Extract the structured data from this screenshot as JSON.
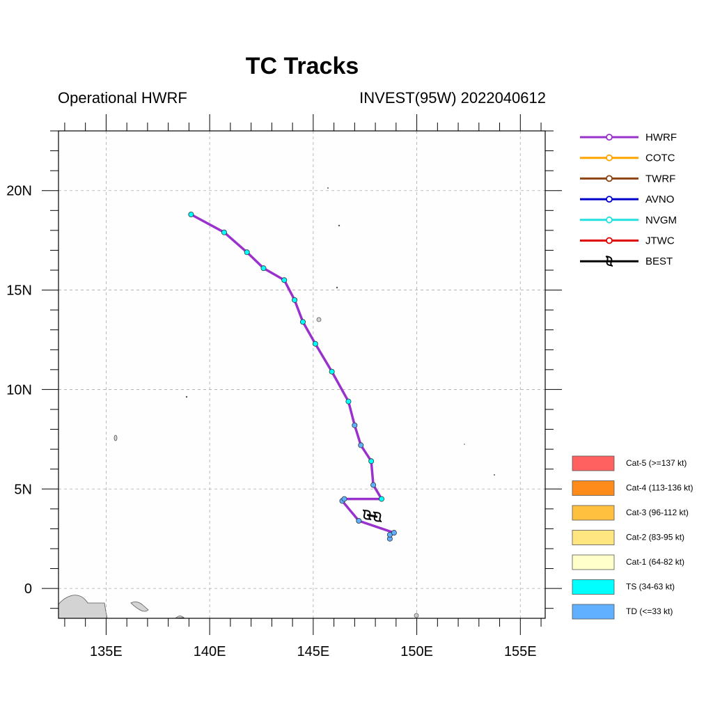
{
  "chart_data": {
    "type": "map-track",
    "title": "TC Tracks",
    "subtitle_left": "Operational HWRF",
    "subtitle_right": "INVEST(95W) 2022040612",
    "xlim": [
      132.7,
      156.2
    ],
    "ylim": [
      -1.5,
      23.0
    ],
    "x_ticks": [
      {
        "value": 135,
        "label": "135E"
      },
      {
        "value": 140,
        "label": "140E"
      },
      {
        "value": 145,
        "label": "145E"
      },
      {
        "value": 150,
        "label": "150E"
      },
      {
        "value": 155,
        "label": "155E"
      }
    ],
    "y_ticks": [
      {
        "value": 0,
        "label": "0"
      },
      {
        "value": 5,
        "label": "5N"
      },
      {
        "value": 10,
        "label": "10N"
      },
      {
        "value": 15,
        "label": "15N"
      },
      {
        "value": 20,
        "label": "20N"
      }
    ],
    "grid": true,
    "legend_position": "right",
    "series": [
      {
        "name": "HWRF",
        "color": "#9932CC",
        "points": [
          {
            "lon": 148.7,
            "lat": 2.5,
            "cat": "TD"
          },
          {
            "lon": 148.7,
            "lat": 2.7,
            "cat": "TD"
          },
          {
            "lon": 148.9,
            "lat": 2.8,
            "cat": "TD"
          },
          {
            "lon": 147.2,
            "lat": 3.4,
            "cat": "TD"
          },
          {
            "lon": 146.4,
            "lat": 4.4,
            "cat": "TD"
          },
          {
            "lon": 146.5,
            "lat": 4.5,
            "cat": "TD"
          },
          {
            "lon": 148.3,
            "lat": 4.5,
            "cat": "TS"
          },
          {
            "lon": 147.9,
            "lat": 5.2,
            "cat": "TD"
          },
          {
            "lon": 147.8,
            "lat": 6.4,
            "cat": "TS"
          },
          {
            "lon": 147.3,
            "lat": 7.2,
            "cat": "TD"
          },
          {
            "lon": 147.0,
            "lat": 8.2,
            "cat": "TD"
          },
          {
            "lon": 146.7,
            "lat": 9.4,
            "cat": "TS"
          },
          {
            "lon": 145.9,
            "lat": 10.9,
            "cat": "TS"
          },
          {
            "lon": 145.1,
            "lat": 12.3,
            "cat": "TS"
          },
          {
            "lon": 144.5,
            "lat": 13.4,
            "cat": "TS"
          },
          {
            "lon": 144.1,
            "lat": 14.5,
            "cat": "TS"
          },
          {
            "lon": 143.6,
            "lat": 15.5,
            "cat": "TS"
          },
          {
            "lon": 142.6,
            "lat": 16.1,
            "cat": "TS"
          },
          {
            "lon": 141.8,
            "lat": 16.9,
            "cat": "TS"
          },
          {
            "lon": 140.7,
            "lat": 17.9,
            "cat": "TS"
          },
          {
            "lon": 139.1,
            "lat": 18.8,
            "cat": "TS"
          }
        ]
      },
      {
        "name": "COTC",
        "color": "#FFA500",
        "points": []
      },
      {
        "name": "TWRF",
        "color": "#8B4513",
        "points": []
      },
      {
        "name": "AVNO",
        "color": "#0000CD",
        "points": []
      },
      {
        "name": "NVGM",
        "color": "#20E0E0",
        "points": []
      },
      {
        "name": "JTWC",
        "color": "#E00000",
        "points": []
      },
      {
        "name": "BEST",
        "color": "#000000",
        "points": [
          {
            "lon": 147.6,
            "lat": 3.7
          },
          {
            "lon": 148.1,
            "lat": 3.6
          }
        ]
      }
    ],
    "intensity_legend": [
      {
        "label": "Cat-5 (>=137 kt)",
        "color": "#FF6060"
      },
      {
        "label": "Cat-4 (113-136 kt)",
        "color": "#FF8C1A"
      },
      {
        "label": "Cat-3 (96-112 kt)",
        "color": "#FFC040"
      },
      {
        "label": "Cat-2 (83-95 kt)",
        "color": "#FFE680"
      },
      {
        "label": "Cat-1 (64-82 kt)",
        "color": "#FFFFCC"
      },
      {
        "label": "TS (34-63 kt)",
        "color": "#00FFFF"
      },
      {
        "label": "TD (<=33 kt)",
        "color": "#60B0FF"
      }
    ]
  }
}
